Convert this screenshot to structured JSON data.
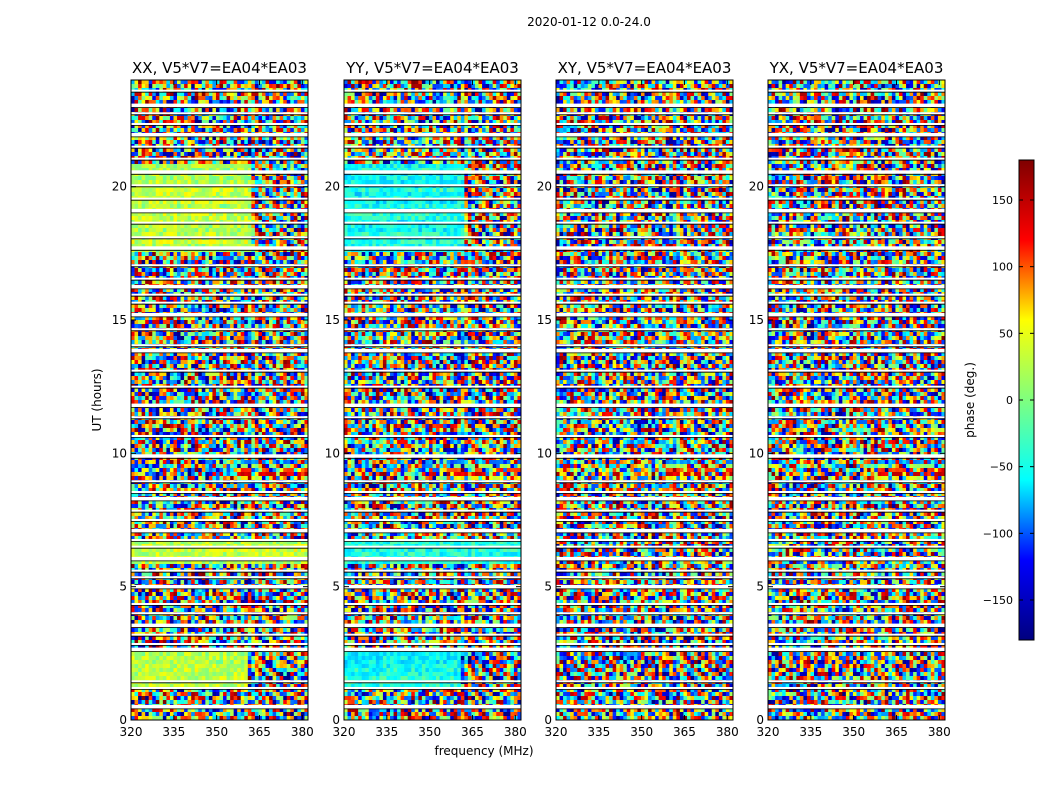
{
  "figure": {
    "title": "2020-01-12 0.0-24.0",
    "xlabel": "frequency (MHz)",
    "ylabel": "UT (hours)",
    "colorbar_label": "phase (deg.)",
    "colormap": "jet",
    "colormap_stops": [
      "#00007f",
      "#0000ff",
      "#00ffff",
      "#7fff7f",
      "#ffff00",
      "#ff0000",
      "#7f0000"
    ]
  },
  "chart_data": {
    "type": "heatmap",
    "title": "2020-01-12 0.0-24.0",
    "xlabel": "frequency (MHz)",
    "ylabel": "UT (hours)",
    "xlim": [
      320,
      382
    ],
    "ylim": [
      0,
      24
    ],
    "xticks": [
      320,
      335,
      350,
      365,
      380
    ],
    "yticks": [
      0,
      5,
      10,
      15,
      20
    ],
    "colorbar": {
      "label": "phase (deg.)",
      "range": [
        -180,
        180
      ],
      "ticks": [
        -150,
        -100,
        -50,
        0,
        50,
        100,
        150
      ],
      "tick_labels": [
        "−150",
        "−100",
        "−50",
        "0",
        "50",
        "100",
        "150"
      ]
    },
    "panels": [
      {
        "title": "XX, V5*V7=EA04*EA03",
        "baseline_phase": 20
      },
      {
        "title": "YY, V5*V7=EA04*EA03",
        "baseline_phase": -40
      },
      {
        "title": "XY, V5*V7=EA04*EA03",
        "baseline_phase": 0
      },
      {
        "title": "YX, V5*V7=EA04*EA03",
        "baseline_phase": 0
      }
    ],
    "flagged_ut_hours": [
      0.5,
      1.2,
      1.45,
      2.65,
      2.85,
      3.2,
      3.55,
      4.0,
      4.35,
      5.0,
      5.35,
      5.6,
      6.05,
      6.5,
      6.75,
      7.1,
      7.5,
      7.85,
      8.3,
      8.55,
      8.95,
      9.9,
      10.65,
      11.35,
      11.8,
      12.5,
      13.1,
      13.85,
      14.05,
      14.65,
      15.2,
      15.65,
      15.95,
      16.25,
      16.55,
      17.05,
      17.7,
      18.1,
      18.65,
      19.1,
      19.55,
      20.05,
      20.55,
      21.05,
      21.5,
      21.95,
      22.35,
      22.75,
      23.05,
      23.6
    ]
  }
}
